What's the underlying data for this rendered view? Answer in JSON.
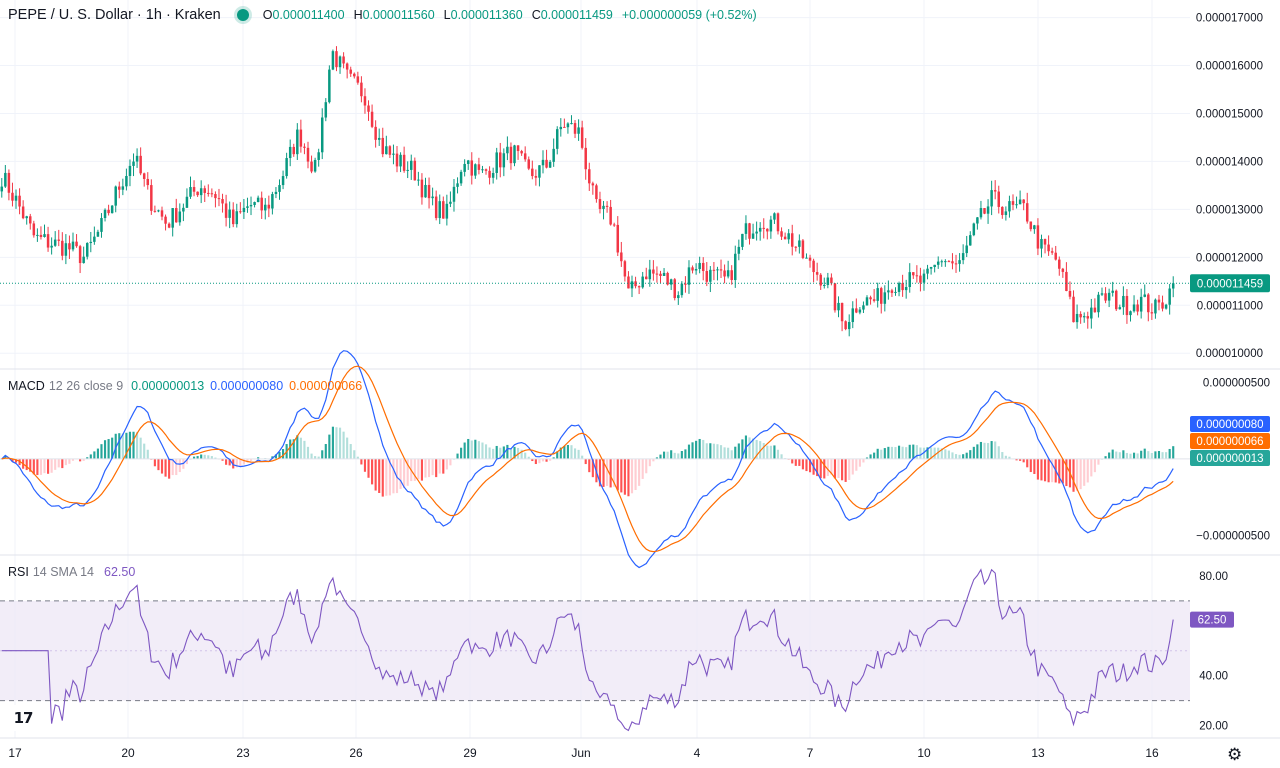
{
  "header": {
    "symbol": "PEPE / U. S. Dollar · 1h · Kraken",
    "open_label": "O",
    "open": "0.000011400",
    "high_label": "H",
    "high": "0.000011560",
    "low_label": "L",
    "low": "0.000011360",
    "close_label": "C",
    "close": "0.000011459",
    "change": "+0.000000059 (+0.52%)"
  },
  "macd": {
    "name": "MACD",
    "params": "12 26 close 9",
    "histogram": "0.000000013",
    "macd": "0.000000080",
    "signal": "0.000000066"
  },
  "rsi": {
    "name": "RSI",
    "params": "14 SMA 14",
    "value": "62.50"
  },
  "colors": {
    "up": "#089981",
    "down": "#f23645",
    "macd_line": "#2962ff",
    "signal_line": "#ff6d00",
    "rsi_line": "#7e57c2",
    "rsi_band": "#ede7f6",
    "grid": "#f0f3fa",
    "text": "#131722"
  },
  "icons": {
    "logo": "tradingview-logo-icon",
    "settings": "gear-icon",
    "logo_text": "17"
  },
  "chart_data": {
    "type": "line",
    "title": "PEPE / U. S. Dollar · 1h · Kraken",
    "x_tick_labels": [
      "17",
      "20",
      "23",
      "26",
      "29",
      "Jun",
      "4",
      "7",
      "10",
      "13",
      "16"
    ],
    "price_axis": {
      "ylim": [
        9.9e-06,
        1.72e-05
      ],
      "ticks": [
        "0.000010000",
        "0.000011000",
        "0.000012000",
        "0.000013000",
        "0.000014000",
        "0.000015000",
        "0.000016000",
        "0.000017000"
      ],
      "last_price_label": "0.000011459"
    },
    "price_path_close": [
      1.37e-05,
      1.31e-05,
      1.24e-05,
      1.23e-05,
      1.22e-05,
      1.2e-05,
      1.26e-05,
      1.34e-05,
      1.41e-05,
      1.32e-05,
      1.27e-05,
      1.31e-05,
      1.35e-05,
      1.33e-05,
      1.27e-05,
      1.31e-05,
      1.3e-05,
      1.37e-05,
      1.46e-05,
      1.38e-05,
      1.63e-05,
      1.57e-05,
      1.54e-05,
      1.43e-05,
      1.4e-05,
      1.38e-05,
      1.31e-05,
      1.29e-05,
      1.41e-05,
      1.37e-05,
      1.4e-05,
      1.42e-05,
      1.37e-05,
      1.39e-05,
      1.48e-05,
      1.46e-05,
      1.3e-05,
      1.28e-05,
      1.12e-05,
      1.17e-05,
      1.16e-05,
      1.13e-05,
      1.19e-05,
      1.16e-05,
      1.15e-05,
      1.25e-05,
      1.28e-05,
      1.27e-05,
      1.23e-05,
      1.18e-05,
      1.15e-05,
      1.06e-05,
      1.11e-05,
      1.11e-05,
      1.15e-05,
      1.15e-05,
      1.15e-05,
      1.2e-05,
      1.18e-05,
      1.26e-05,
      1.32e-05,
      1.3e-05,
      1.3e-05,
      1.22e-05,
      1.19e-05,
      1.07e-05,
      1.09e-05,
      1.12e-05,
      1.1e-05,
      1.11e-05,
      1.09e-05,
      1.14e-05
    ],
    "macd_axis": {
      "ylim": [
        -6.2e-07,
        5.8e-07
      ],
      "ticks": [
        "0.000000500",
        "−0.000000500"
      ]
    },
    "macd_series": [
      {
        "name": "MACD",
        "last": "0.000000080"
      },
      {
        "name": "Signal",
        "last": "0.000000066"
      },
      {
        "name": "Histogram",
        "last": "0.000000013"
      }
    ],
    "rsi_axis": {
      "ylim": [
        15,
        88
      ],
      "ticks": [
        "80.00",
        "40.00",
        "20.00"
      ],
      "band": [
        30,
        70
      ],
      "last": "62.50"
    }
  }
}
